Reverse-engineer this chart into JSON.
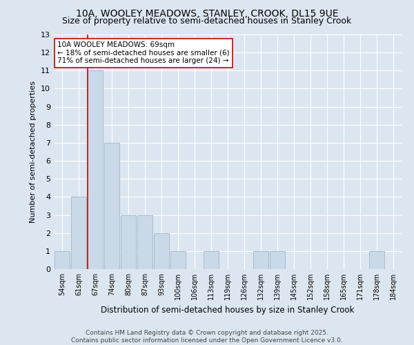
{
  "title": "10A, WOOLEY MEADOWS, STANLEY, CROOK, DL15 9UE",
  "subtitle": "Size of property relative to semi-detached houses in Stanley Crook",
  "xlabel": "Distribution of semi-detached houses by size in Stanley Crook",
  "ylabel": "Number of semi-detached properties",
  "footnote": "Contains HM Land Registry data © Crown copyright and database right 2025.\nContains public sector information licensed under the Open Government Licence v3.0.",
  "categories": [
    "54sqm",
    "61sqm",
    "67sqm",
    "74sqm",
    "80sqm",
    "87sqm",
    "93sqm",
    "100sqm",
    "106sqm",
    "113sqm",
    "119sqm",
    "126sqm",
    "132sqm",
    "139sqm",
    "145sqm",
    "152sqm",
    "158sqm",
    "165sqm",
    "171sqm",
    "178sqm",
    "184sqm"
  ],
  "values": [
    1,
    4,
    11,
    7,
    3,
    3,
    2,
    1,
    0,
    1,
    0,
    0,
    1,
    1,
    0,
    0,
    0,
    0,
    0,
    1,
    0
  ],
  "bar_color": "#c9d9e8",
  "bar_edgecolor": "#aabbcc",
  "vline_index": 2,
  "vline_color": "#cc0000",
  "annotation_text": "10A WOOLEY MEADOWS: 69sqm\n← 18% of semi-detached houses are smaller (6)\n71% of semi-detached houses are larger (24) →",
  "annotation_box_edgecolor": "#cc0000",
  "annotation_box_facecolor": "#ffffff",
  "ylim": [
    0,
    13
  ],
  "yticks": [
    0,
    1,
    2,
    3,
    4,
    5,
    6,
    7,
    8,
    9,
    10,
    11,
    12,
    13
  ],
  "background_color": "#dce6f0",
  "title_fontsize": 10,
  "subtitle_fontsize": 9,
  "xlabel_fontsize": 8.5,
  "ylabel_fontsize": 8,
  "footnote_fontsize": 6.5
}
